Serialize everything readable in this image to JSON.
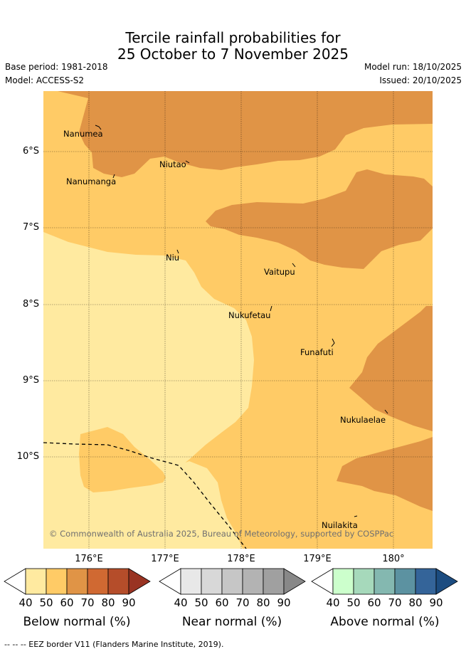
{
  "title_line1": "Tercile rainfall probabilities for",
  "title_line2": "25 October to 7 November 2025",
  "base_period": "Base period: 1981-2018",
  "model": "Model: ACCESS-S2",
  "model_run": "Model run: 18/10/2025",
  "issued": "Issued: 20/10/2025",
  "map": {
    "lat_ticks": [
      "6°S",
      "7°S",
      "8°S",
      "9°S",
      "10°S"
    ],
    "lon_ticks": [
      "176°E",
      "177°E",
      "178°E",
      "179°E",
      "180°"
    ],
    "places": {
      "nanumea": "Nanumea",
      "nanumanga": "Nanumanga",
      "niutao": "Niutao",
      "niu": "Niu",
      "vaitupu": "Vaitupu",
      "nukufetau": "Nukufetau",
      "funafuti": "Funafuti",
      "nukulaelae": "Nukulaelae",
      "nuilakita": "Nuilakita"
    },
    "copyright": "© Commonwealth of Australia 2025, Bureau of Meteorology, supported by COSPPac",
    "colors": {
      "below_40": "#ffeaa0",
      "below_50": "#ffcb66",
      "below_60": "#e09446"
    }
  },
  "colorbars": {
    "below": {
      "label": "Below normal (%)",
      "ticks": [
        "40",
        "50",
        "60",
        "70",
        "80",
        "90"
      ],
      "colors": [
        "#ffeaa0",
        "#ffcb66",
        "#e09446",
        "#d06932",
        "#b54d2a",
        "#993322"
      ]
    },
    "near": {
      "label": "Near normal (%)",
      "ticks": [
        "40",
        "50",
        "60",
        "70",
        "80",
        "90"
      ],
      "colors": [
        "#e8e8e8",
        "#d8d8d8",
        "#c6c6c6",
        "#b3b3b3",
        "#a0a0a0",
        "#888888"
      ]
    },
    "above": {
      "label": "Above normal (%)",
      "ticks": [
        "40",
        "50",
        "60",
        "70",
        "80",
        "90"
      ],
      "colors": [
        "#ccffcc",
        "#a6d9bb",
        "#84b8b0",
        "#5c92a1",
        "#346499",
        "#1c4c80"
      ]
    }
  },
  "footer": "--  --  -- EEZ border V11 (Flanders Marine Institute, 2019)."
}
